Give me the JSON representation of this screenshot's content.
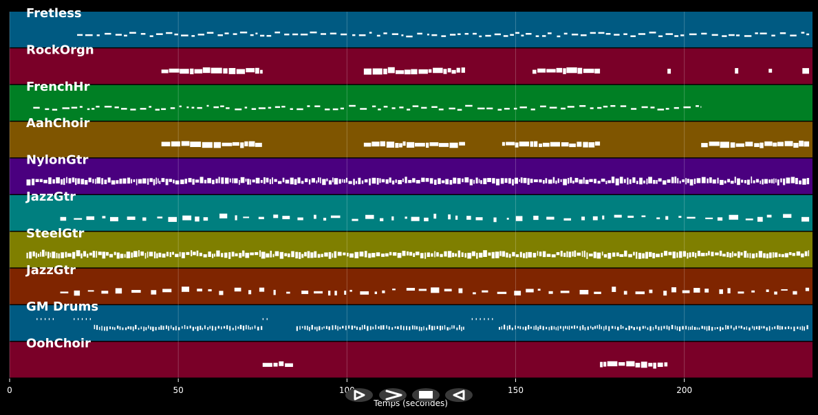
{
  "chart_data": {
    "type": "piano-roll",
    "xlabel": "Temps (secondes)",
    "xlim": [
      0,
      238
    ],
    "x_ticks": [
      0,
      50,
      100,
      150,
      200
    ],
    "grid": true,
    "tracks": [
      {
        "name": "Fretless",
        "color": "#005a82",
        "start": 20,
        "end": 237,
        "density": 0.55,
        "style": "dash",
        "bursts": []
      },
      {
        "name": "RockOrgn",
        "color": "#7a0028",
        "start": 45,
        "end": 237,
        "density": 0.0,
        "style": "block",
        "bursts": [
          [
            45,
            75
          ],
          [
            105,
            135
          ],
          [
            155,
            175
          ],
          [
            195,
            196
          ],
          [
            215,
            216
          ],
          [
            225,
            226
          ],
          [
            235,
            237
          ]
        ]
      },
      {
        "name": "FrenchHr",
        "color": "#007f24",
        "start": 7,
        "end": 205,
        "density": 0.6,
        "style": "dash",
        "bursts": []
      },
      {
        "name": "AahChoir",
        "color": "#7f5500",
        "start": 45,
        "end": 237,
        "density": 0.0,
        "style": "block",
        "bursts": [
          [
            45,
            75
          ],
          [
            105,
            135
          ],
          [
            146,
            175
          ],
          [
            205,
            237
          ]
        ]
      },
      {
        "name": "NylonGtr",
        "color": "#4a007f",
        "start": 5,
        "end": 237,
        "density": 0.95,
        "style": "dense",
        "bursts": []
      },
      {
        "name": "JazzGtr",
        "color": "#007f7f",
        "start": 15,
        "end": 237,
        "density": 0.5,
        "style": "mixed",
        "bursts": []
      },
      {
        "name": "SteelGtr",
        "color": "#7f7f00",
        "start": 5,
        "end": 237,
        "density": 0.98,
        "style": "dense",
        "bursts": []
      },
      {
        "name": "JazzGtr",
        "color": "#7f2500",
        "start": 15,
        "end": 237,
        "density": 0.5,
        "style": "mixed",
        "bursts": []
      },
      {
        "name": "GM Drums",
        "color": "#005a82",
        "start": 7,
        "end": 237,
        "density": 0.9,
        "style": "drums",
        "bursts": [
          [
            25,
            75
          ],
          [
            85,
            135
          ],
          [
            145,
            237
          ]
        ]
      },
      {
        "name": "OohChoir",
        "color": "#7a0028",
        "start": 75,
        "end": 195,
        "density": 0.0,
        "style": "block",
        "bursts": [
          [
            75,
            84
          ],
          [
            175,
            195
          ]
        ]
      }
    ]
  },
  "controls": {
    "play_icon": "play-icon",
    "forward_icon": "fast-forward-icon",
    "stop_icon": "stop-icon",
    "back_icon": "back-icon"
  }
}
